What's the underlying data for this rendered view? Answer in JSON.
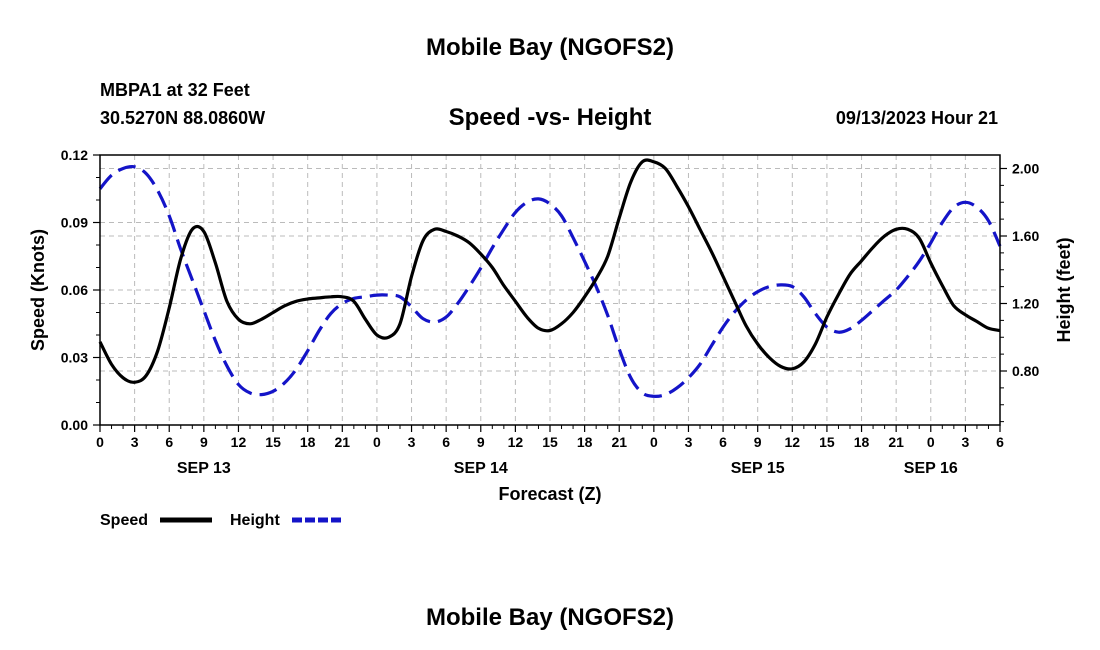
{
  "page_title": "Mobile Bay (NGOFS2)",
  "footer_title": "Mobile Bay (NGOFS2)",
  "station": {
    "line1": "MBPA1 at 32 Feet",
    "line2": "30.5270N  88.0860W"
  },
  "chart_title": "Speed -vs- Height",
  "timestamp": "09/13/2023 Hour 21",
  "legend": {
    "speed_label": "Speed",
    "height_label": "Height"
  },
  "chart_data": {
    "type": "line",
    "title": "Speed -vs- Height",
    "xlabel": "Forecast (Z)",
    "ylabel_left": "Speed (Knots)",
    "ylabel_right": "Height (feet)",
    "x_hours_range": [
      0,
      78
    ],
    "x_tick_labels": [
      "0",
      "3",
      "6",
      "9",
      "12",
      "15",
      "18",
      "21",
      "0",
      "3",
      "6",
      "9",
      "12",
      "15",
      "18",
      "21",
      "0",
      "3",
      "6",
      "9",
      "12",
      "15",
      "18",
      "21",
      "0",
      "3",
      "6"
    ],
    "date_labels": [
      {
        "label": "SEP 13",
        "hour": 9
      },
      {
        "label": "SEP 14",
        "hour": 33
      },
      {
        "label": "SEP 15",
        "hour": 57
      },
      {
        "label": "SEP 16",
        "hour": 72
      }
    ],
    "ylim_left": [
      0,
      0.12
    ],
    "yticks_left": [
      "0.00",
      "0.03",
      "0.06",
      "0.09",
      "0.12"
    ],
    "ylim_right": [
      0.48,
      2.08
    ],
    "yticks_right": [
      "0.80",
      "1.20",
      "1.60",
      "2.00"
    ],
    "grid": true,
    "legend_position": "bottom-left",
    "colors": {
      "speed": "#000000",
      "height": "#1414c8",
      "grid": "#bbbbbb"
    },
    "series": [
      {
        "name": "Speed",
        "axis": "left",
        "style": "solid",
        "x": [
          0,
          1,
          2,
          3,
          4,
          5,
          6,
          7,
          8,
          9,
          10,
          11,
          12,
          13,
          14,
          15,
          16,
          17,
          18,
          19,
          20,
          21,
          22,
          23,
          24,
          25,
          26,
          27,
          28,
          29,
          30,
          31,
          32,
          33,
          34,
          35,
          36,
          37,
          38,
          39,
          40,
          41,
          42,
          43,
          44,
          45,
          46,
          47,
          48,
          49,
          50,
          51,
          52,
          53,
          54,
          55,
          56,
          57,
          58,
          59,
          60,
          61,
          62,
          63,
          64,
          65,
          66,
          67,
          68,
          69,
          70,
          71,
          72,
          73,
          74,
          75,
          76,
          77,
          78
        ],
        "y": [
          0.037,
          0.027,
          0.021,
          0.019,
          0.022,
          0.033,
          0.052,
          0.074,
          0.087,
          0.086,
          0.072,
          0.055,
          0.047,
          0.045,
          0.047,
          0.05,
          0.053,
          0.055,
          0.056,
          0.0565,
          0.057,
          0.057,
          0.055,
          0.047,
          0.04,
          0.039,
          0.045,
          0.066,
          0.082,
          0.087,
          0.086,
          0.084,
          0.081,
          0.076,
          0.07,
          0.062,
          0.055,
          0.048,
          0.043,
          0.042,
          0.045,
          0.05,
          0.057,
          0.065,
          0.075,
          0.092,
          0.108,
          0.117,
          0.117,
          0.114,
          0.106,
          0.097,
          0.087,
          0.077,
          0.066,
          0.055,
          0.044,
          0.036,
          0.03,
          0.026,
          0.025,
          0.028,
          0.036,
          0.048,
          0.058,
          0.067,
          0.073,
          0.079,
          0.084,
          0.087,
          0.087,
          0.083,
          0.072,
          0.062,
          0.053,
          0.049,
          0.046,
          0.043,
          0.042
        ]
      },
      {
        "name": "Height",
        "axis": "right",
        "style": "dashed",
        "x": [
          0,
          1,
          2,
          3,
          4,
          5,
          6,
          7,
          8,
          9,
          10,
          11,
          12,
          13,
          14,
          15,
          16,
          17,
          18,
          19,
          20,
          21,
          22,
          23,
          24,
          25,
          26,
          27,
          28,
          29,
          30,
          31,
          32,
          33,
          34,
          35,
          36,
          37,
          38,
          39,
          40,
          41,
          42,
          43,
          44,
          45,
          46,
          47,
          48,
          49,
          50,
          51,
          52,
          53,
          54,
          55,
          56,
          57,
          58,
          59,
          60,
          61,
          62,
          63,
          64,
          65,
          66,
          67,
          68,
          69,
          70,
          71,
          72,
          73,
          74,
          75,
          76,
          77,
          78
        ],
        "y": [
          1.88,
          1.96,
          2.0,
          2.01,
          1.97,
          1.87,
          1.72,
          1.52,
          1.34,
          1.16,
          0.98,
          0.83,
          0.72,
          0.67,
          0.66,
          0.68,
          0.73,
          0.81,
          0.92,
          1.04,
          1.14,
          1.2,
          1.23,
          1.24,
          1.25,
          1.25,
          1.24,
          1.18,
          1.11,
          1.09,
          1.12,
          1.2,
          1.3,
          1.41,
          1.53,
          1.64,
          1.74,
          1.8,
          1.82,
          1.79,
          1.72,
          1.59,
          1.45,
          1.3,
          1.13,
          0.93,
          0.76,
          0.67,
          0.65,
          0.66,
          0.7,
          0.76,
          0.84,
          0.95,
          1.06,
          1.15,
          1.22,
          1.27,
          1.3,
          1.31,
          1.3,
          1.24,
          1.14,
          1.06,
          1.03,
          1.05,
          1.1,
          1.16,
          1.22,
          1.28,
          1.36,
          1.45,
          1.56,
          1.68,
          1.77,
          1.8,
          1.77,
          1.69,
          1.54
        ]
      }
    ]
  }
}
